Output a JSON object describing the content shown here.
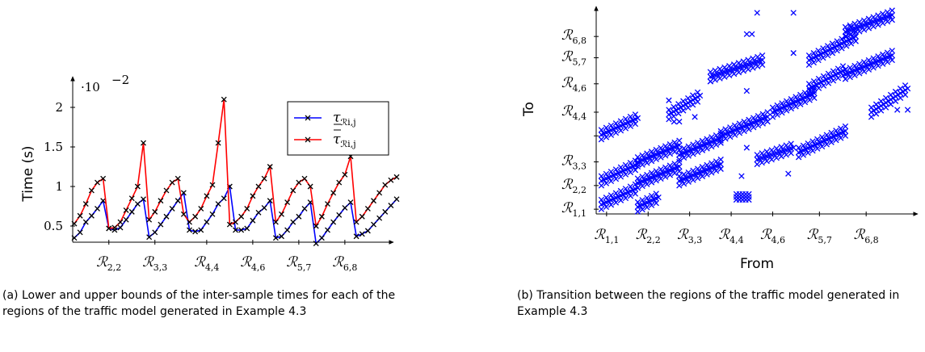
{
  "captions": {
    "a": "(a) Lower and upper bounds of the inter-sample times for each of the regions of the traffic model generated in Example 4.3",
    "b": "(b) Transition between the regions of the traffic model generated in Example 4.3"
  },
  "chart_data": [
    {
      "type": "line",
      "title": "",
      "xlabel": "",
      "ylabel": "Time (s)",
      "y_multiplier_label": "·10",
      "y_multiplier_exp": "−2",
      "ylim": [
        0.35,
        2.2
      ],
      "y_ticks": [
        "0.5",
        "1",
        "1.5",
        "2"
      ],
      "y_tick_values": [
        0.5,
        1,
        1.5,
        2
      ],
      "x_tick_labels": [
        {
          "base": "R",
          "sub": "2,2",
          "x": 6
        },
        {
          "base": "R",
          "sub": "3,3",
          "x": 14
        },
        {
          "base": "R",
          "sub": "4,4",
          "x": 23
        },
        {
          "base": "R",
          "sub": "4,6",
          "x": 31
        },
        {
          "base": "R",
          "sub": "5,7",
          "x": 39
        },
        {
          "base": "R",
          "sub": "6,8",
          "x": 47
        }
      ],
      "legend_position": "top-right",
      "series": [
        {
          "name": "τ̲ R i,j",
          "legend_base": "τ",
          "legend_sub": "ℛi,j",
          "bar": "under",
          "color": "#0000ff",
          "values": [
            0.35,
            0.42,
            0.55,
            0.63,
            0.72,
            0.82,
            0.47,
            0.45,
            0.48,
            0.58,
            0.68,
            0.78,
            0.84,
            0.36,
            0.42,
            0.52,
            0.62,
            0.72,
            0.82,
            0.92,
            0.45,
            0.43,
            0.45,
            0.55,
            0.65,
            0.78,
            0.85,
            1.0,
            0.45,
            0.45,
            0.47,
            0.57,
            0.67,
            0.73,
            0.82,
            0.35,
            0.37,
            0.45,
            0.55,
            0.62,
            0.72,
            0.8,
            0.28,
            0.35,
            0.45,
            0.55,
            0.64,
            0.73,
            0.8,
            0.37,
            0.4,
            0.44,
            0.52,
            0.6,
            0.68,
            0.76,
            0.84
          ]
        },
        {
          "name": "τ̄ R i,j",
          "legend_base": "τ",
          "legend_sub": "ℛi,j",
          "bar": "over",
          "color": "#ff0000",
          "values": [
            0.53,
            0.63,
            0.78,
            0.95,
            1.05,
            1.1,
            0.47,
            0.48,
            0.55,
            0.7,
            0.85,
            1.0,
            1.55,
            0.58,
            0.68,
            0.82,
            0.95,
            1.05,
            1.1,
            0.65,
            0.55,
            0.62,
            0.72,
            0.88,
            1.02,
            1.55,
            2.1,
            0.52,
            0.55,
            0.62,
            0.72,
            0.88,
            1.0,
            1.1,
            1.25,
            0.55,
            0.65,
            0.8,
            0.95,
            1.05,
            1.1,
            1.0,
            0.5,
            0.62,
            0.78,
            0.92,
            1.05,
            1.15,
            1.38,
            0.55,
            0.62,
            0.72,
            0.82,
            0.92,
            1.02,
            1.08,
            1.12
          ]
        }
      ]
    },
    {
      "type": "scatter",
      "title": "",
      "xlabel": "From",
      "ylabel": "To",
      "tick_labels": [
        {
          "base": "R",
          "sub": "1,1"
        },
        {
          "base": "R",
          "sub": "2,2"
        },
        {
          "base": "R",
          "sub": "3,3"
        },
        {
          "base": "R",
          "sub": "4,4"
        },
        {
          "base": "R",
          "sub": "4,6"
        },
        {
          "base": "R",
          "sub": "5,7"
        },
        {
          "base": "R",
          "sub": "6,8"
        }
      ],
      "marker_color": "#0000ff",
      "segments": [
        {
          "x0": 1,
          "x1": 8,
          "y0": 33.5,
          "y1": 40.5
        },
        {
          "x0": 1,
          "x1": 8,
          "y0": 14,
          "y1": 21
        },
        {
          "x0": 1,
          "x1": 8,
          "y0": 4,
          "y1": 11
        },
        {
          "x0": 8,
          "x1": 16,
          "y0": 22,
          "y1": 29
        },
        {
          "x0": 8,
          "x1": 16,
          "y0": 13,
          "y1": 20
        },
        {
          "x0": 8,
          "x1": 12,
          "y0": 3,
          "y1": 7
        },
        {
          "x0": 14,
          "x1": 20,
          "y0": 42,
          "y1": 50
        },
        {
          "x0": 16,
          "x1": 24,
          "y0": 25,
          "y1": 32
        },
        {
          "x0": 16,
          "x1": 24,
          "y0": 14,
          "y1": 21
        },
        {
          "x0": 22,
          "x1": 32,
          "y0": 58,
          "y1": 65
        },
        {
          "x0": 24,
          "x1": 33,
          "y0": 33,
          "y1": 41
        },
        {
          "x0": 34,
          "x1": 42,
          "y0": 43,
          "y1": 51
        },
        {
          "x0": 31,
          "x1": 38,
          "y0": 23,
          "y1": 28
        },
        {
          "x0": 41,
          "x1": 50,
          "y0": 65,
          "y1": 75
        },
        {
          "x0": 41,
          "x1": 48,
          "y0": 53,
          "y1": 61
        },
        {
          "x0": 39,
          "x1": 48,
          "y0": 26,
          "y1": 35
        },
        {
          "x0": 48,
          "x1": 57,
          "y0": 77,
          "y1": 84
        },
        {
          "x0": 48,
          "x1": 57,
          "y0": 59,
          "y1": 67
        },
        {
          "x0": 53,
          "x1": 60,
          "y0": 43,
          "y1": 53
        }
      ],
      "blobs": [
        {
          "x0": 27,
          "x1": 30,
          "y0": 6,
          "y1": 9
        }
      ],
      "outliers": [
        [
          14,
          48
        ],
        [
          19,
          41
        ],
        [
          28,
          16
        ],
        [
          29,
          28
        ],
        [
          29,
          76
        ],
        [
          30,
          76
        ],
        [
          31,
          85
        ],
        [
          29,
          52
        ],
        [
          38,
          68
        ],
        [
          38,
          85
        ],
        [
          38,
          47
        ],
        [
          37,
          17
        ],
        [
          49,
          79
        ],
        [
          60,
          44
        ],
        [
          58,
          44
        ],
        [
          16,
          39
        ],
        [
          15,
          39
        ],
        [
          22,
          56
        ]
      ],
      "xlim": [
        0,
        61
      ],
      "ylim": [
        0,
        87
      ],
      "tick_positions": [
        2,
        10,
        18,
        26,
        34,
        43,
        52
      ],
      "y_tick_positions": [
        2,
        12,
        22,
        33,
        43,
        55,
        66,
        75
      ]
    }
  ]
}
